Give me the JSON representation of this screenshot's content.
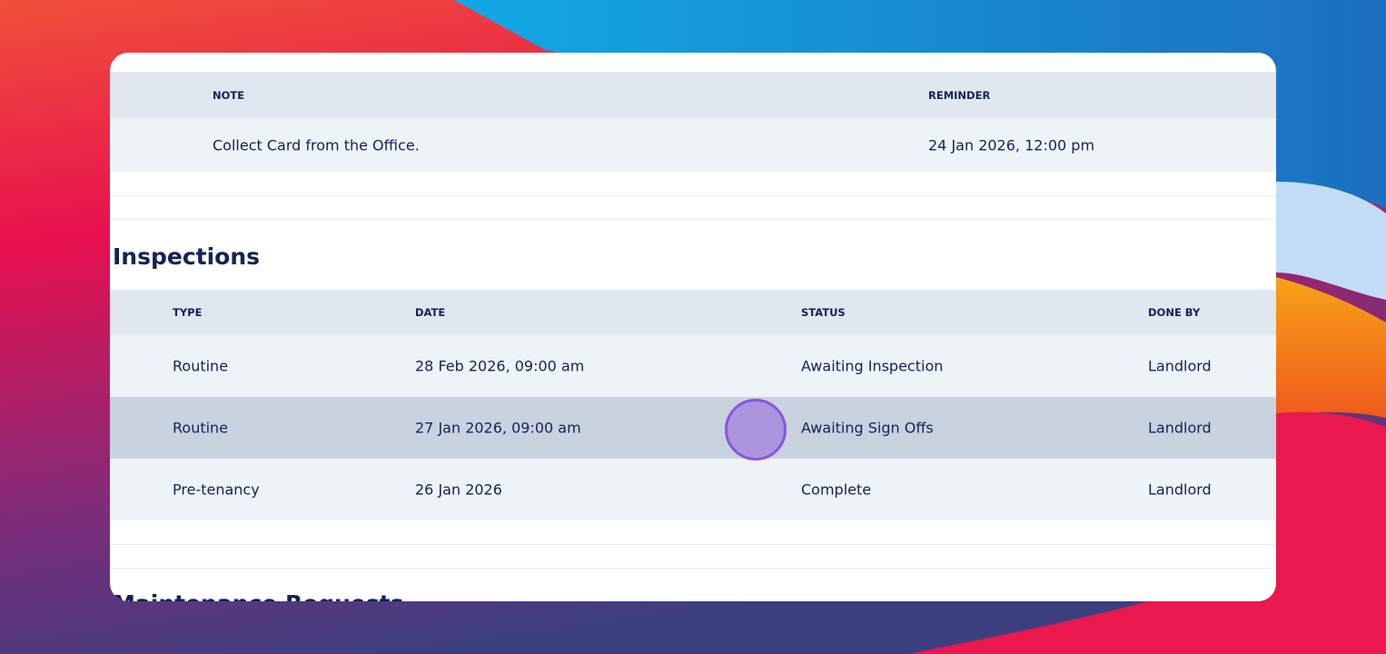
{
  "notes": {
    "headers": [
      "NOTE",
      "REMINDER"
    ],
    "rows": [
      [
        "Collect Card from the Office.",
        "24 Jan 2026, 12:00 pm"
      ]
    ]
  },
  "inspections": {
    "title": "Inspections",
    "headers": [
      "TYPE",
      "DATE",
      "STATUS",
      "DONE BY"
    ],
    "rows": [
      [
        "Routine",
        "28 Feb 2026, 09:00 am",
        "Awaiting Inspection",
        "Landlord"
      ],
      [
        "Routine",
        "27 Jan 2026, 09:00 am",
        "Awaiting Sign Offs",
        "Landlord"
      ],
      [
        "Pre-tenancy",
        "26 Jan 2026",
        "Complete",
        "Landlord"
      ]
    ]
  },
  "next_section": {
    "title": "Maintenance Requests"
  }
}
